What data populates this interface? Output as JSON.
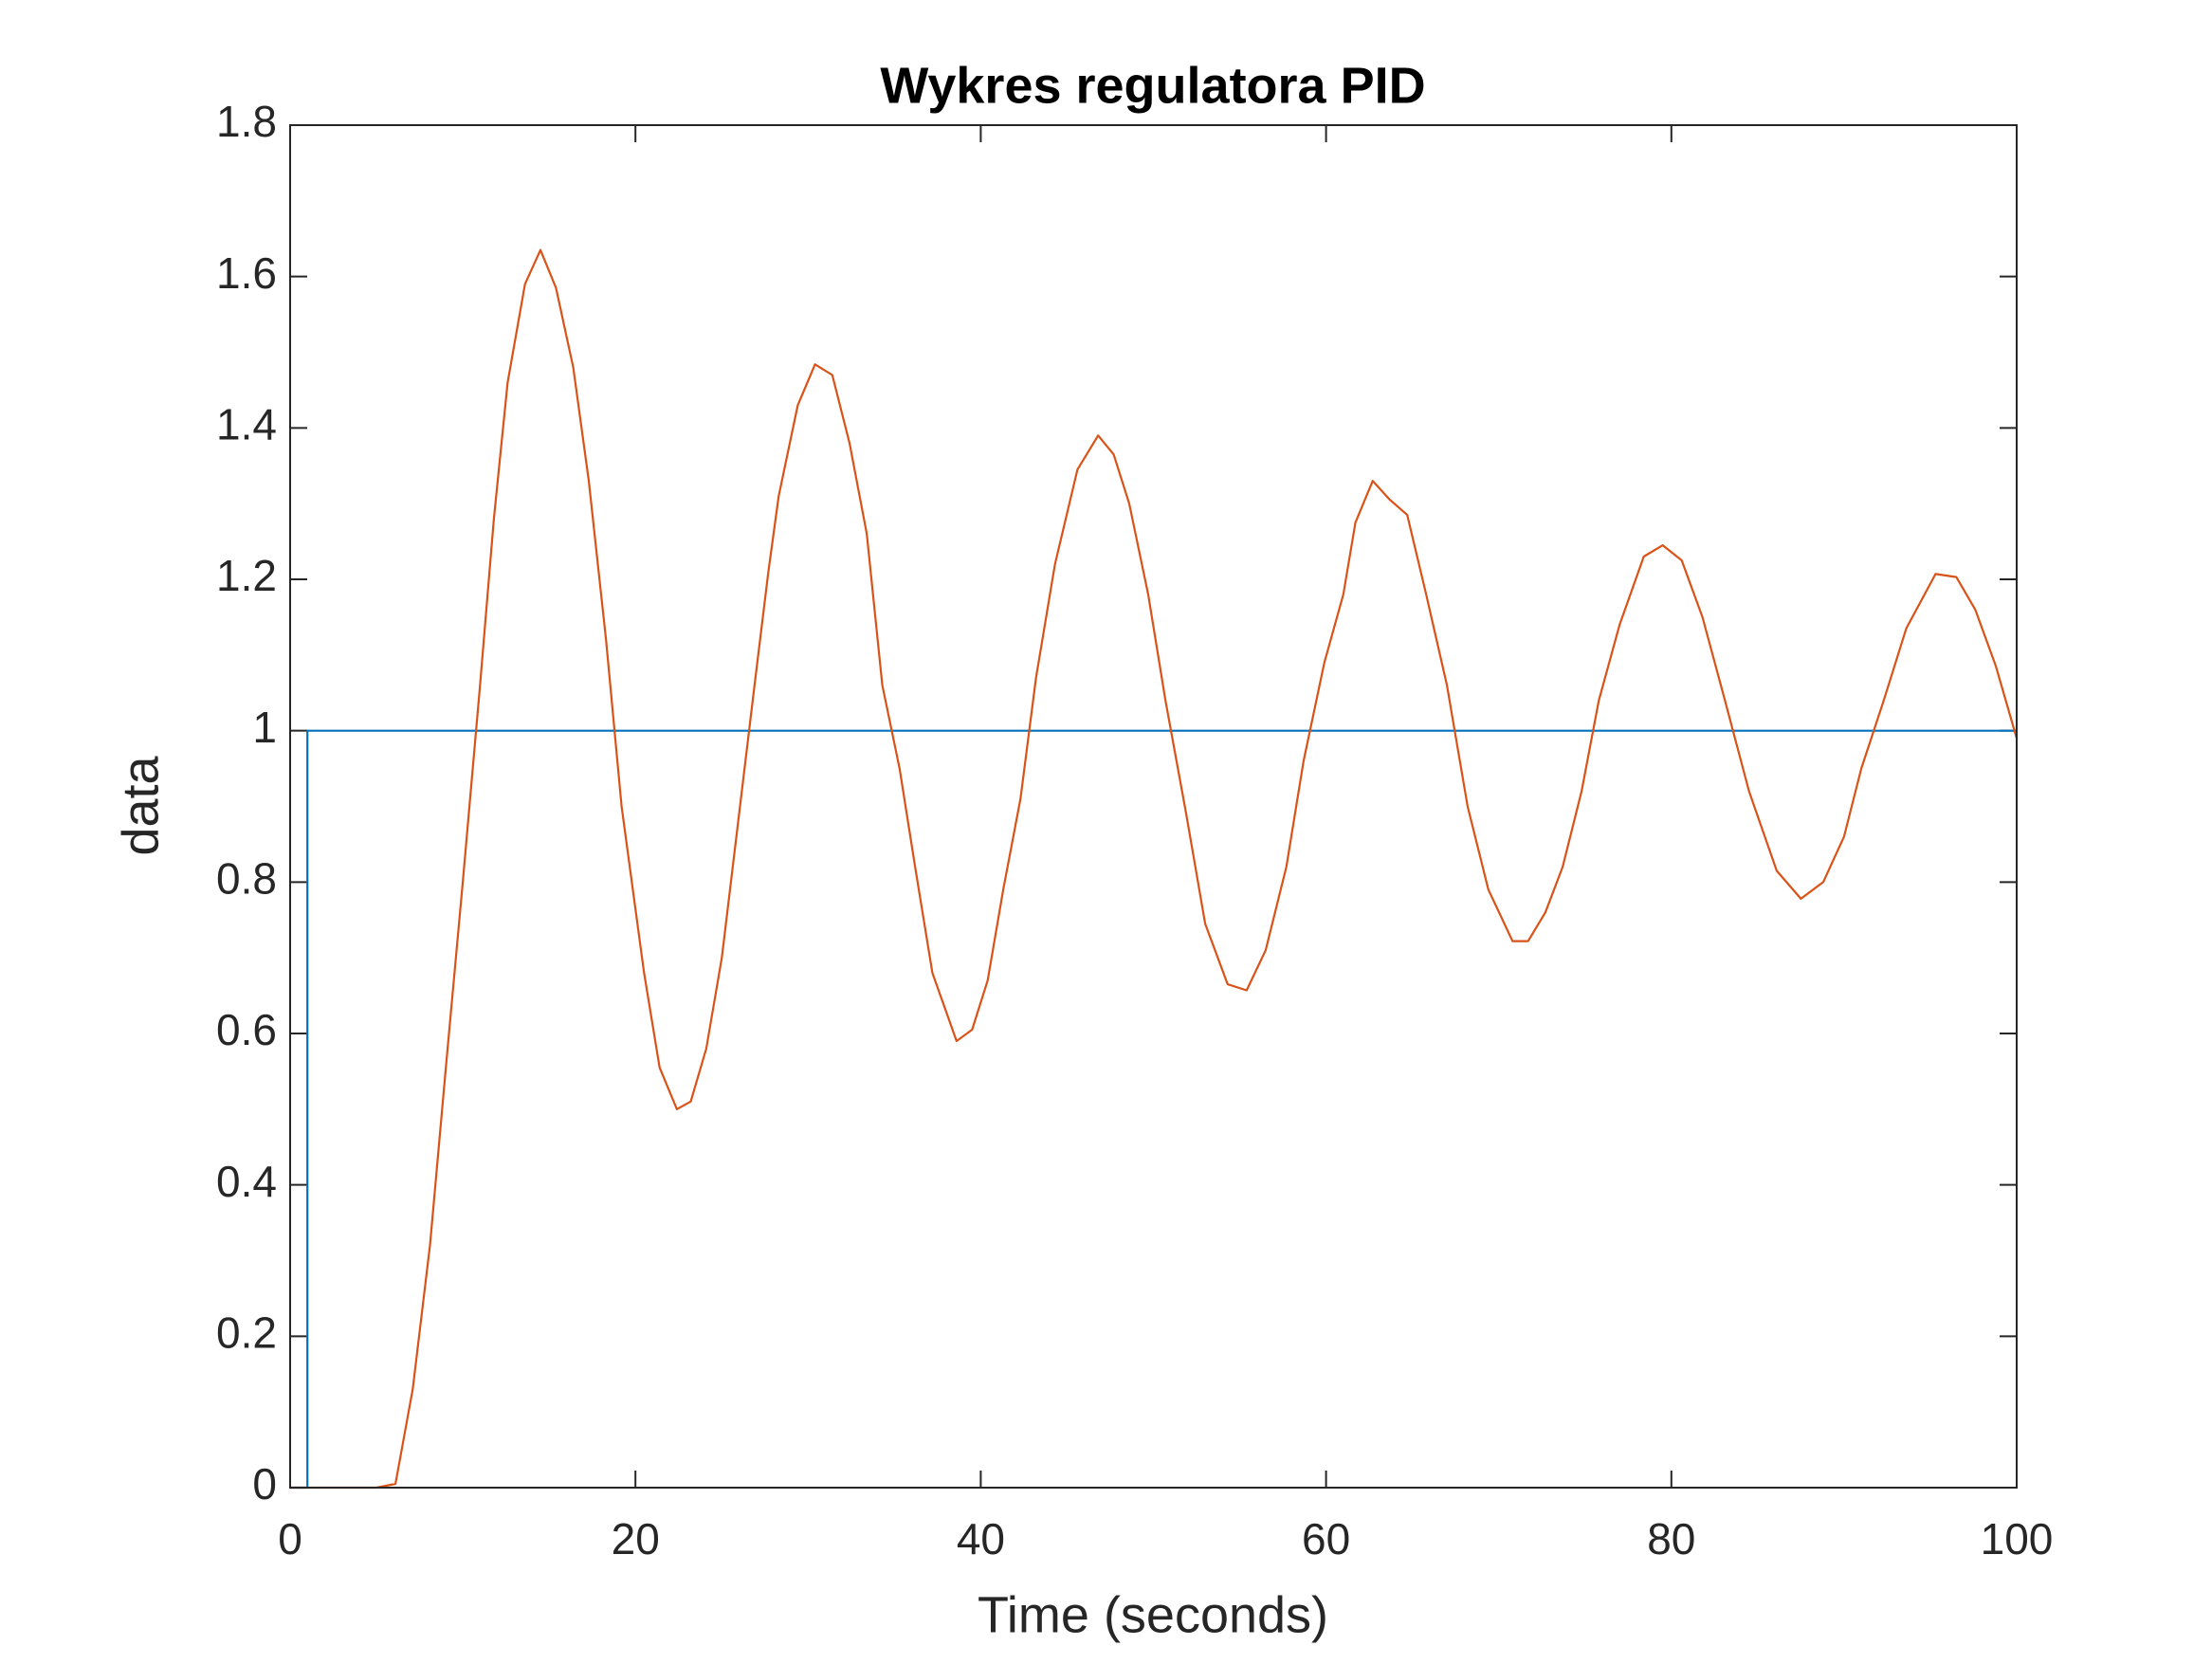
{
  "chart_data": {
    "type": "line",
    "title": "Wykres regulatora PID",
    "xlabel": "Time (seconds)",
    "ylabel": "data",
    "xlim": [
      0,
      100
    ],
    "xticks": [
      0,
      20,
      40,
      60,
      80,
      100
    ],
    "ylim": [
      0,
      1.8
    ],
    "yticks": [
      0,
      0.2,
      0.4,
      0.6,
      0.8,
      1,
      1.2,
      1.4,
      1.6,
      1.8
    ],
    "grid": false,
    "series": [
      {
        "color": "#0072bd",
        "x": [
          0,
          1,
          1,
          100
        ],
        "values": [
          0,
          0,
          1,
          1
        ]
      },
      {
        "color": "#d95319",
        "x": [
          0,
          5,
          6.1,
          7.1,
          8.1,
          9.0,
          10.0,
          11.0,
          11.8,
          12.6,
          13.6,
          14.5,
          15.4,
          16.4,
          17.3,
          18.3,
          19.2,
          20.5,
          21.4,
          22.4,
          23.2,
          24.1,
          25.0,
          25.9,
          26.9,
          27.7,
          28.3,
          29.4,
          30.4,
          31.4,
          32.4,
          33.4,
          34.3,
          35.3,
          36.2,
          37.2,
          38.6,
          39.5,
          40.4,
          41.3,
          42.3,
          43.2,
          44.3,
          45.6,
          46.8,
          47.7,
          48.6,
          49.7,
          50.7,
          51.9,
          53.0,
          54.3,
          55.4,
          56.5,
          57.7,
          58.7,
          59.9,
          61.0,
          61.7,
          62.7,
          63.7,
          64.7,
          65.8,
          67.0,
          68.2,
          69.4,
          70.8,
          71.7,
          72.7,
          73.7,
          74.8,
          75.8,
          77.0,
          78.4,
          79.5,
          80.6,
          81.8,
          83.1,
          84.5,
          86.1,
          87.5,
          88.8,
          90.0,
          91.0,
          92.3,
          93.6,
          95.3,
          96.5,
          97.6,
          98.8,
          100
        ],
        "values": [
          0,
          0,
          0.005,
          0.13,
          0.32,
          0.55,
          0.8,
          1.06,
          1.28,
          1.46,
          1.59,
          1.635,
          1.585,
          1.48,
          1.33,
          1.12,
          0.9,
          0.68,
          0.555,
          0.5,
          0.51,
          0.58,
          0.7,
          0.87,
          1.06,
          1.21,
          1.31,
          1.43,
          1.484,
          1.47,
          1.38,
          1.26,
          1.06,
          0.95,
          0.82,
          0.68,
          0.59,
          0.605,
          0.67,
          0.79,
          0.91,
          1.07,
          1.22,
          1.345,
          1.39,
          1.365,
          1.3,
          1.18,
          1.04,
          0.89,
          0.745,
          0.665,
          0.657,
          0.71,
          0.82,
          0.96,
          1.09,
          1.18,
          1.275,
          1.33,
          1.305,
          1.285,
          1.18,
          1.06,
          0.9,
          0.79,
          0.722,
          0.722,
          0.76,
          0.82,
          0.92,
          1.04,
          1.14,
          1.23,
          1.245,
          1.225,
          1.15,
          1.04,
          0.92,
          0.815,
          0.778,
          0.8,
          0.86,
          0.95,
          1.04,
          1.135,
          1.207,
          1.203,
          1.16,
          1.085,
          0.99
        ]
      }
    ]
  }
}
